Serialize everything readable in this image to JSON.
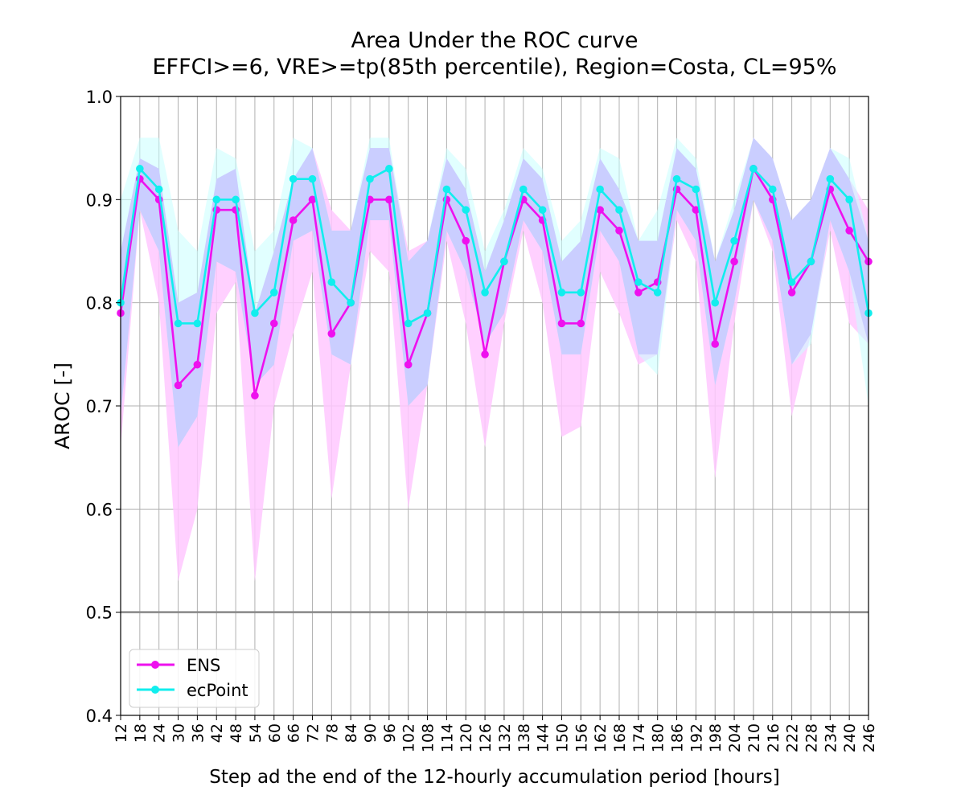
{
  "chart_data": {
    "type": "line",
    "title": "Area Under the ROC curve",
    "subtitle": "EFFCI>=6, VRE>=tp(85th percentile), Region=Costa, CL=95%",
    "xlabel": "Step ad the end of the 12-hourly accumulation period [hours]",
    "ylabel": "AROC [-]",
    "ylim": [
      0.4,
      1.0
    ],
    "yticks": [
      "0.4",
      "0.5",
      "0.6",
      "0.7",
      "0.8",
      "0.9",
      "1.0"
    ],
    "x": [
      12,
      18,
      24,
      30,
      36,
      42,
      48,
      54,
      60,
      66,
      72,
      78,
      84,
      90,
      96,
      102,
      108,
      114,
      120,
      126,
      132,
      138,
      144,
      150,
      156,
      162,
      168,
      174,
      180,
      186,
      192,
      198,
      204,
      210,
      216,
      222,
      228,
      234,
      240,
      246
    ],
    "grid": true,
    "reference_line": 0.5,
    "legend_position": "lower-left",
    "series": [
      {
        "name": "ENS",
        "color": "#ee11ee",
        "band_color": "#ffc8ff",
        "values": [
          0.79,
          0.92,
          0.9,
          0.72,
          0.74,
          0.89,
          0.89,
          0.71,
          0.78,
          0.88,
          0.9,
          0.77,
          0.8,
          0.9,
          0.9,
          0.74,
          0.79,
          0.9,
          0.86,
          0.75,
          0.84,
          0.9,
          0.88,
          0.78,
          0.78,
          0.89,
          0.87,
          0.81,
          0.82,
          0.91,
          0.89,
          0.76,
          0.84,
          0.93,
          0.9,
          0.81,
          0.84,
          0.91,
          0.87,
          0.84
        ],
        "lower": [
          0.66,
          0.89,
          0.8,
          0.53,
          0.6,
          0.79,
          0.82,
          0.53,
          0.7,
          0.77,
          0.83,
          0.61,
          0.74,
          0.85,
          0.83,
          0.6,
          0.72,
          0.86,
          0.78,
          0.66,
          0.78,
          0.87,
          0.8,
          0.67,
          0.68,
          0.83,
          0.79,
          0.74,
          0.75,
          0.88,
          0.84,
          0.63,
          0.78,
          0.9,
          0.85,
          0.69,
          0.77,
          0.87,
          0.78,
          0.76
        ],
        "upper": [
          0.85,
          0.94,
          0.93,
          0.8,
          0.81,
          0.92,
          0.93,
          0.79,
          0.85,
          0.92,
          0.95,
          0.89,
          0.87,
          0.95,
          0.95,
          0.85,
          0.86,
          0.94,
          0.91,
          0.83,
          0.88,
          0.94,
          0.92,
          0.84,
          0.86,
          0.94,
          0.91,
          0.86,
          0.86,
          0.95,
          0.93,
          0.84,
          0.89,
          0.96,
          0.94,
          0.88,
          0.9,
          0.95,
          0.92,
          0.89
        ]
      },
      {
        "name": "ecPoint",
        "color": "#11eeee",
        "band_color": "#c8ffff",
        "values": [
          0.8,
          0.93,
          0.91,
          0.78,
          0.78,
          0.9,
          0.9,
          0.79,
          0.81,
          0.92,
          0.92,
          0.82,
          0.8,
          0.92,
          0.93,
          0.78,
          0.79,
          0.91,
          0.89,
          0.81,
          0.84,
          0.91,
          0.89,
          0.81,
          0.81,
          0.91,
          0.89,
          0.82,
          0.81,
          0.92,
          0.91,
          0.8,
          0.86,
          0.93,
          0.91,
          0.82,
          0.84,
          0.92,
          0.9,
          0.79
        ],
        "lower": [
          0.69,
          0.89,
          0.85,
          0.66,
          0.69,
          0.84,
          0.83,
          0.72,
          0.74,
          0.86,
          0.87,
          0.75,
          0.74,
          0.88,
          0.88,
          0.7,
          0.72,
          0.87,
          0.83,
          0.76,
          0.79,
          0.88,
          0.85,
          0.75,
          0.75,
          0.87,
          0.84,
          0.75,
          0.73,
          0.89,
          0.86,
          0.72,
          0.8,
          0.9,
          0.86,
          0.74,
          0.76,
          0.88,
          0.83,
          0.7
        ],
        "upper": [
          0.9,
          0.96,
          0.96,
          0.87,
          0.85,
          0.95,
          0.94,
          0.85,
          0.87,
          0.96,
          0.95,
          0.87,
          0.87,
          0.96,
          0.96,
          0.84,
          0.86,
          0.95,
          0.93,
          0.85,
          0.89,
          0.95,
          0.93,
          0.86,
          0.88,
          0.95,
          0.94,
          0.86,
          0.89,
          0.96,
          0.94,
          0.84,
          0.9,
          0.96,
          0.94,
          0.88,
          0.9,
          0.95,
          0.94,
          0.86
        ]
      }
    ]
  }
}
